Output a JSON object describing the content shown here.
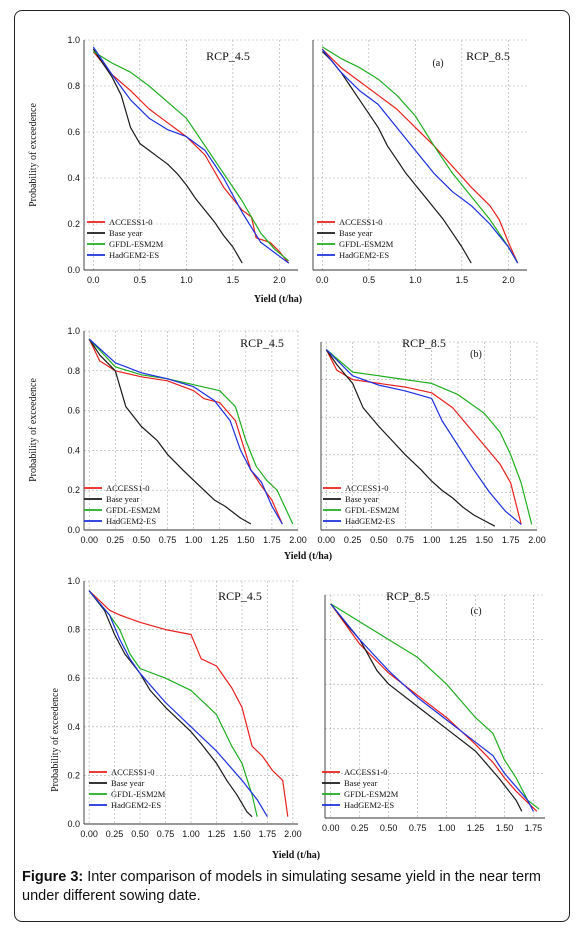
{
  "caption": {
    "label": "Figure 3:",
    "text": " Inter comparison of models in simulating sesame yield in the near term under different sowing date."
  },
  "colors": {
    "ACCESS1-0": "#e8201c",
    "Base year": "#1a1a1a",
    "GFDL-ESM2M": "#1fae1f",
    "HadGEM2-ES": "#1c2fe0",
    "grid": "#aaaaaa"
  },
  "chart_data": [
    {
      "type": "line",
      "panel_tag": "",
      "rcp": "RCP_4.5",
      "ylabel": "Probability of exceedence",
      "xlabel": "",
      "xticks": [
        "0.0",
        "0.5",
        "1.0",
        "1.5",
        "2.0"
      ],
      "xlim": [
        -0.1,
        2.2
      ],
      "yticks": [
        "0.0",
        "0.2",
        "0.4",
        "0.6",
        "0.8",
        "1.0"
      ],
      "ylim": [
        0,
        1
      ],
      "legend_position": "bottom-left",
      "grid": true,
      "series": [
        {
          "name": "ACCESS1-0",
          "x": [
            0,
            0.2,
            0.4,
            0.6,
            0.8,
            1.0,
            1.2,
            1.4,
            1.6,
            1.7,
            1.75,
            1.9,
            2.0,
            2.1
          ],
          "y": [
            0.95,
            0.85,
            0.78,
            0.7,
            0.64,
            0.58,
            0.5,
            0.36,
            0.26,
            0.23,
            0.14,
            0.12,
            0.08,
            0.03
          ]
        },
        {
          "name": "Base year",
          "x": [
            0,
            0.1,
            0.2,
            0.3,
            0.4,
            0.5,
            0.6,
            0.7,
            0.8,
            0.9,
            1.0,
            1.1,
            1.2,
            1.3,
            1.4,
            1.5,
            1.6
          ],
          "y": [
            0.96,
            0.9,
            0.84,
            0.76,
            0.62,
            0.55,
            0.52,
            0.49,
            0.46,
            0.42,
            0.37,
            0.31,
            0.26,
            0.21,
            0.15,
            0.1,
            0.03
          ]
        },
        {
          "name": "GFDL-ESM2M",
          "x": [
            0,
            0.2,
            0.4,
            0.6,
            0.8,
            1.0,
            1.2,
            1.4,
            1.6,
            1.8,
            1.95,
            2.1
          ],
          "y": [
            0.95,
            0.9,
            0.86,
            0.8,
            0.73,
            0.66,
            0.54,
            0.42,
            0.3,
            0.16,
            0.09,
            0.04
          ]
        },
        {
          "name": "HadGEM2-ES",
          "x": [
            0,
            0.2,
            0.4,
            0.6,
            0.8,
            1.0,
            1.2,
            1.4,
            1.6,
            1.8,
            2.0,
            2.1
          ],
          "y": [
            0.97,
            0.85,
            0.74,
            0.66,
            0.61,
            0.58,
            0.52,
            0.4,
            0.25,
            0.12,
            0.06,
            0.03
          ]
        }
      ]
    },
    {
      "type": "line",
      "panel_tag": "(a)",
      "rcp": "RCP_8.5",
      "ylabel": "",
      "xlabel": "Yield (t/ha)",
      "xticks": [
        "0.0",
        "0.5",
        "1.0",
        "1.5",
        "2.0"
      ],
      "xlim": [
        -0.1,
        2.2
      ],
      "yticks": [],
      "ylim": [
        0,
        1
      ],
      "legend_position": "bottom-left",
      "grid": true,
      "series": [
        {
          "name": "ACCESS1-0",
          "x": [
            0,
            0.2,
            0.4,
            0.6,
            0.8,
            1.0,
            1.2,
            1.4,
            1.6,
            1.8,
            1.9,
            2.0,
            2.1
          ],
          "y": [
            0.96,
            0.88,
            0.82,
            0.76,
            0.7,
            0.62,
            0.54,
            0.45,
            0.36,
            0.28,
            0.22,
            0.12,
            0.03
          ]
        },
        {
          "name": "Base year",
          "x": [
            0,
            0.1,
            0.2,
            0.3,
            0.4,
            0.5,
            0.6,
            0.7,
            0.8,
            0.9,
            1.0,
            1.1,
            1.2,
            1.3,
            1.4,
            1.5,
            1.6
          ],
          "y": [
            0.95,
            0.91,
            0.86,
            0.8,
            0.74,
            0.68,
            0.62,
            0.54,
            0.48,
            0.42,
            0.37,
            0.32,
            0.27,
            0.22,
            0.16,
            0.1,
            0.03
          ]
        },
        {
          "name": "GFDL-ESM2M",
          "x": [
            0,
            0.2,
            0.4,
            0.6,
            0.8,
            1.0,
            1.2,
            1.4,
            1.6,
            1.8,
            2.0,
            2.1
          ],
          "y": [
            0.97,
            0.92,
            0.88,
            0.83,
            0.76,
            0.67,
            0.54,
            0.42,
            0.32,
            0.22,
            0.1,
            0.03
          ]
        },
        {
          "name": "HadGEM2-ES",
          "x": [
            0,
            0.2,
            0.4,
            0.6,
            0.8,
            1.0,
            1.2,
            1.4,
            1.6,
            1.8,
            2.0,
            2.1
          ],
          "y": [
            0.96,
            0.86,
            0.78,
            0.72,
            0.62,
            0.52,
            0.42,
            0.34,
            0.28,
            0.2,
            0.1,
            0.03
          ]
        }
      ]
    },
    {
      "type": "line",
      "panel_tag": "",
      "rcp": "RCP_4.5",
      "ylabel": "Probability of exceedence",
      "xlabel": "",
      "xticks": [
        "0.00",
        "0.25",
        "0.50",
        "0.75",
        "1.00",
        "1.25",
        "1.50",
        "1.75",
        "2.00"
      ],
      "xlim": [
        -0.05,
        2.0
      ],
      "yticks": [
        "0.0",
        "0.2",
        "0.4",
        "0.6",
        "0.8",
        "1.0"
      ],
      "ylim": [
        0,
        1
      ],
      "legend_position": "bottom-left",
      "grid": true,
      "series": [
        {
          "name": "ACCESS1-0",
          "x": [
            0,
            0.1,
            0.25,
            0.5,
            0.75,
            1.0,
            1.1,
            1.25,
            1.4,
            1.55,
            1.65,
            1.75,
            1.85
          ],
          "y": [
            0.96,
            0.85,
            0.8,
            0.77,
            0.75,
            0.7,
            0.66,
            0.64,
            0.55,
            0.3,
            0.22,
            0.15,
            0.03
          ]
        },
        {
          "name": "Base year",
          "x": [
            0,
            0.1,
            0.25,
            0.35,
            0.5,
            0.65,
            0.75,
            0.9,
            1.0,
            1.1,
            1.2,
            1.3,
            1.45,
            1.55
          ],
          "y": [
            0.96,
            0.88,
            0.8,
            0.62,
            0.52,
            0.45,
            0.38,
            0.3,
            0.25,
            0.2,
            0.15,
            0.12,
            0.06,
            0.03
          ]
        },
        {
          "name": "GFDL-ESM2M",
          "x": [
            0,
            0.25,
            0.5,
            0.75,
            1.0,
            1.25,
            1.4,
            1.5,
            1.6,
            1.7,
            1.8,
            1.95
          ],
          "y": [
            0.96,
            0.82,
            0.78,
            0.76,
            0.73,
            0.7,
            0.62,
            0.45,
            0.32,
            0.25,
            0.2,
            0.03
          ]
        },
        {
          "name": "HadGEM2-ES",
          "x": [
            0,
            0.25,
            0.5,
            0.75,
            1.0,
            1.2,
            1.35,
            1.45,
            1.55,
            1.65,
            1.75,
            1.85
          ],
          "y": [
            0.96,
            0.84,
            0.79,
            0.76,
            0.72,
            0.65,
            0.55,
            0.4,
            0.3,
            0.24,
            0.12,
            0.03
          ]
        }
      ]
    },
    {
      "type": "line",
      "panel_tag": "(b)",
      "rcp": "RCP_8.5",
      "ylabel": "",
      "xlabel": "Yield (t/ha)",
      "xticks": [
        "0.00",
        "0.25",
        "0.50",
        "0.75",
        "1.00",
        "1.25",
        "1.50",
        "1.75",
        "2.00"
      ],
      "xlim": [
        -0.05,
        2.0
      ],
      "yticks": [],
      "ylim": [
        0,
        1
      ],
      "legend_position": "bottom-left",
      "grid": true,
      "series": [
        {
          "name": "ACCESS1-0",
          "x": [
            0,
            0.1,
            0.25,
            0.5,
            0.75,
            1.0,
            1.2,
            1.35,
            1.5,
            1.65,
            1.75,
            1.85
          ],
          "y": [
            0.96,
            0.85,
            0.8,
            0.78,
            0.76,
            0.73,
            0.65,
            0.55,
            0.45,
            0.35,
            0.25,
            0.03
          ]
        },
        {
          "name": "Base year",
          "x": [
            0,
            0.1,
            0.25,
            0.35,
            0.5,
            0.65,
            0.75,
            0.9,
            1.0,
            1.1,
            1.2,
            1.3,
            1.4,
            1.5,
            1.6
          ],
          "y": [
            0.96,
            0.88,
            0.78,
            0.65,
            0.55,
            0.46,
            0.4,
            0.32,
            0.26,
            0.21,
            0.17,
            0.12,
            0.08,
            0.05,
            0.02
          ]
        },
        {
          "name": "GFDL-ESM2M",
          "x": [
            0,
            0.25,
            0.5,
            0.75,
            1.0,
            1.25,
            1.5,
            1.65,
            1.75,
            1.85,
            1.95
          ],
          "y": [
            0.96,
            0.84,
            0.82,
            0.8,
            0.78,
            0.72,
            0.62,
            0.52,
            0.4,
            0.25,
            0.03
          ]
        },
        {
          "name": "HadGEM2-ES",
          "x": [
            0,
            0.25,
            0.5,
            0.75,
            1.0,
            1.1,
            1.25,
            1.4,
            1.55,
            1.7,
            1.85
          ],
          "y": [
            0.96,
            0.82,
            0.77,
            0.74,
            0.7,
            0.58,
            0.45,
            0.32,
            0.2,
            0.1,
            0.03
          ]
        }
      ]
    },
    {
      "type": "line",
      "panel_tag": "",
      "rcp": "RCP_4.5",
      "ylabel": "Probability of exceedence",
      "xlabel": "",
      "xticks": [
        "0.00",
        "0.25",
        "0.50",
        "0.75",
        "1.00",
        "1.25",
        "1.50",
        "1.75",
        "2.00"
      ],
      "xlim": [
        -0.05,
        2.05
      ],
      "yticks": [
        "0.0",
        "0.2",
        "0.4",
        "0.6",
        "0.8",
        "1.0"
      ],
      "ylim": [
        0,
        1
      ],
      "legend_position": "bottom-left",
      "grid": true,
      "series": [
        {
          "name": "ACCESS1-0",
          "x": [
            0,
            0.2,
            0.3,
            0.5,
            0.75,
            1.0,
            1.1,
            1.25,
            1.4,
            1.5,
            1.6,
            1.7,
            1.8,
            1.9,
            1.95
          ],
          "y": [
            0.96,
            0.88,
            0.86,
            0.83,
            0.8,
            0.78,
            0.68,
            0.65,
            0.56,
            0.48,
            0.32,
            0.28,
            0.22,
            0.18,
            0.03
          ]
        },
        {
          "name": "Base year",
          "x": [
            0,
            0.15,
            0.25,
            0.35,
            0.5,
            0.6,
            0.75,
            0.9,
            1.0,
            1.1,
            1.25,
            1.35,
            1.45,
            1.55,
            1.6
          ],
          "y": [
            0.96,
            0.88,
            0.78,
            0.7,
            0.62,
            0.55,
            0.48,
            0.42,
            0.38,
            0.33,
            0.25,
            0.18,
            0.12,
            0.05,
            0.03
          ]
        },
        {
          "name": "GFDL-ESM2M",
          "x": [
            0,
            0.2,
            0.3,
            0.4,
            0.5,
            0.75,
            1.0,
            1.25,
            1.4,
            1.5,
            1.6,
            1.65
          ],
          "y": [
            0.96,
            0.86,
            0.8,
            0.7,
            0.64,
            0.6,
            0.55,
            0.45,
            0.32,
            0.25,
            0.12,
            0.03
          ]
        },
        {
          "name": "HadGEM2-ES",
          "x": [
            0,
            0.2,
            0.3,
            0.4,
            0.5,
            0.75,
            1.0,
            1.25,
            1.5,
            1.65,
            1.75
          ],
          "y": [
            0.96,
            0.86,
            0.76,
            0.68,
            0.62,
            0.5,
            0.4,
            0.3,
            0.18,
            0.1,
            0.03
          ]
        }
      ]
    },
    {
      "type": "line",
      "panel_tag": "(c)",
      "rcp": "RCP_8.5",
      "ylabel": "",
      "xlabel": "Yield (t/ha)",
      "xticks": [
        "0.00",
        "0.25",
        "0.50",
        "0.75",
        "1.00",
        "1.25",
        "1.50",
        "1.75"
      ],
      "xlim": [
        -0.05,
        1.85
      ],
      "yticks": [],
      "ylim": [
        0,
        1
      ],
      "legend_position": "bottom-left",
      "grid": true,
      "series": [
        {
          "name": "ACCESS1-0",
          "x": [
            0,
            0.25,
            0.5,
            0.75,
            1.0,
            1.25,
            1.4,
            1.5,
            1.6,
            1.7,
            1.78
          ],
          "y": [
            0.96,
            0.78,
            0.65,
            0.55,
            0.45,
            0.33,
            0.25,
            0.18,
            0.12,
            0.07,
            0.03
          ]
        },
        {
          "name": "Base year",
          "x": [
            0,
            0.15,
            0.25,
            0.4,
            0.5,
            0.75,
            1.0,
            1.25,
            1.45,
            1.6,
            1.65
          ],
          "y": [
            0.96,
            0.86,
            0.8,
            0.66,
            0.6,
            0.5,
            0.4,
            0.3,
            0.18,
            0.08,
            0.03
          ]
        },
        {
          "name": "GFDL-ESM2M",
          "x": [
            0,
            0.25,
            0.5,
            0.75,
            1.0,
            1.25,
            1.4,
            1.5,
            1.6,
            1.7,
            1.8
          ],
          "y": [
            0.96,
            0.88,
            0.8,
            0.72,
            0.6,
            0.45,
            0.38,
            0.26,
            0.18,
            0.08,
            0.04
          ]
        },
        {
          "name": "HadGEM2-ES",
          "x": [
            0,
            0.25,
            0.5,
            0.75,
            1.0,
            1.25,
            1.4,
            1.5,
            1.6,
            1.7,
            1.75
          ],
          "y": [
            0.96,
            0.8,
            0.66,
            0.54,
            0.44,
            0.34,
            0.28,
            0.2,
            0.14,
            0.08,
            0.03
          ]
        }
      ]
    }
  ]
}
